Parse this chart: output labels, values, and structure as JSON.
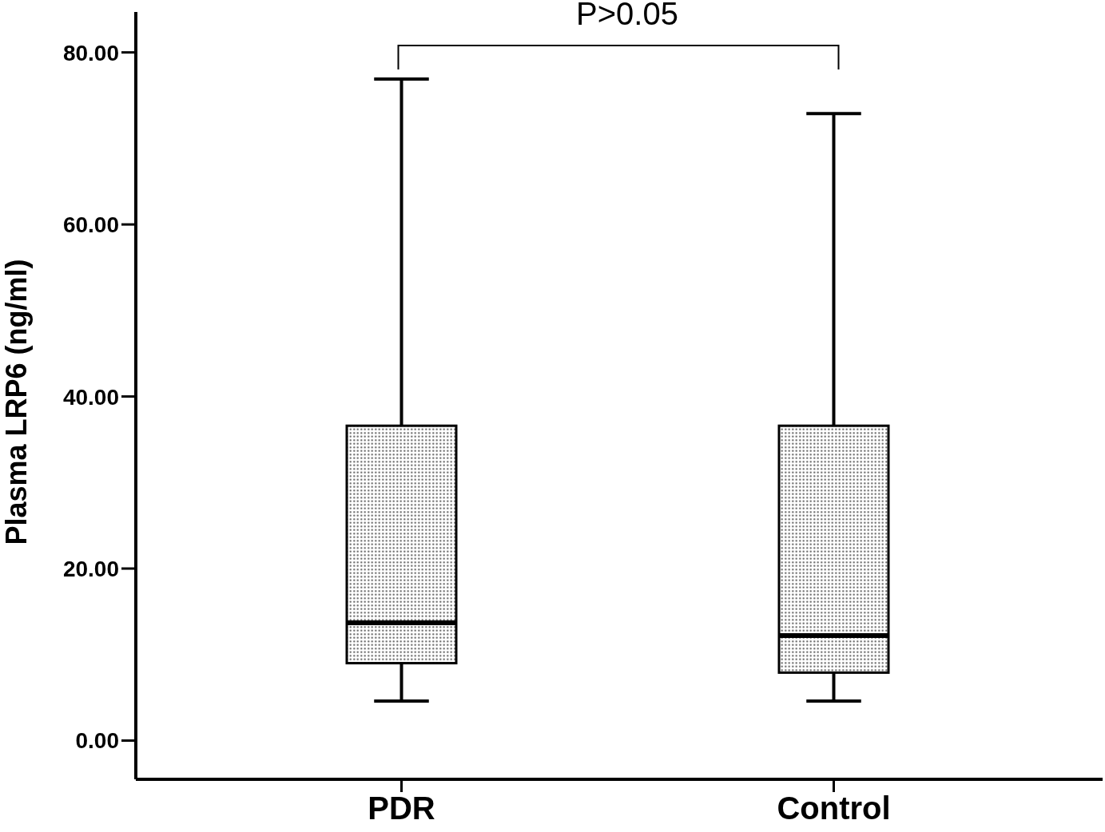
{
  "chart_data": {
    "type": "box",
    "categories": [
      "PDR",
      "Control"
    ],
    "boxes": [
      {
        "low": 4.6,
        "q1": 9.0,
        "median": 13.7,
        "q3": 36.6,
        "high": 76.9
      },
      {
        "low": 4.6,
        "q1": 7.9,
        "median": 12.2,
        "q3": 36.6,
        "high": 72.9
      }
    ],
    "ylabel": "Plasma LRP6 (ng/ml)",
    "ylim": [
      -4.5,
      84.7
    ],
    "yticks": [
      {
        "value": 0,
        "label": "0.00"
      },
      {
        "value": 20,
        "label": "20.00"
      },
      {
        "value": 40,
        "label": "40.00"
      },
      {
        "value": 60,
        "label": "60.00"
      },
      {
        "value": 80,
        "label": "80.00"
      }
    ],
    "annotations": [
      "P>0.05"
    ]
  }
}
